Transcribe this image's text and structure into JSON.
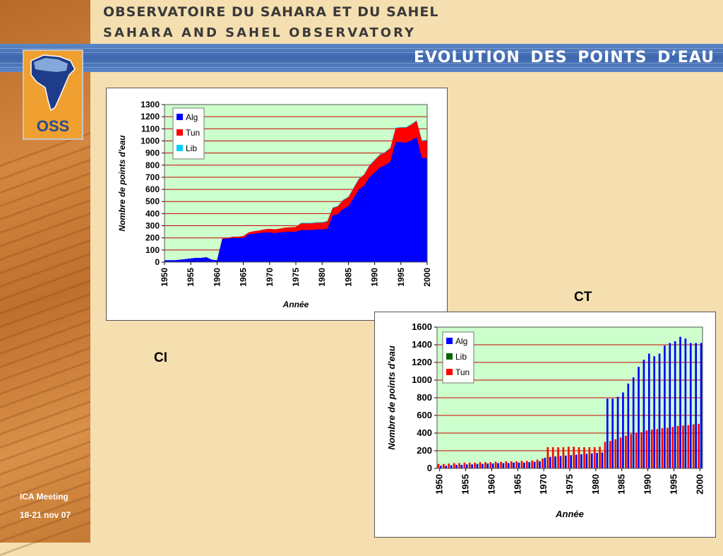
{
  "header": {
    "org_fr": "OBSERVATOIRE DU SAHARA ET DU SAHEL",
    "org_en": "SAHARA AND SAHEL OBSERVATORY",
    "slide_title": "EVOLUTION  DES  POINTS  D’EAU",
    "logo_text": "OSS"
  },
  "labels": {
    "ct": "CT",
    "ci": "CI"
  },
  "footer": {
    "line1": "ICA Meeting",
    "line2": "18-21 nov 07"
  },
  "colors": {
    "plot_bg": "#ccffcc",
    "gridline": "#cc0000",
    "alg": "#0000ff",
    "tun": "#ff0000",
    "lib_ci": "#00ccff",
    "lib_ct": "#006600",
    "title_band": "#3d67ad"
  },
  "chart_data": [
    {
      "id": "ci",
      "type": "area",
      "stacked": true,
      "xlabel": "Année",
      "ylabel": "Nombre de points d'eau",
      "x": [
        1950,
        1951,
        1952,
        1953,
        1954,
        1955,
        1956,
        1957,
        1958,
        1959,
        1960,
        1961,
        1962,
        1963,
        1964,
        1965,
        1966,
        1967,
        1968,
        1969,
        1970,
        1971,
        1972,
        1973,
        1974,
        1975,
        1976,
        1977,
        1978,
        1979,
        1980,
        1981,
        1982,
        1983,
        1984,
        1985,
        1986,
        1987,
        1988,
        1989,
        1990,
        1991,
        1992,
        1993,
        1994,
        1995,
        1996,
        1997,
        1998,
        1999,
        2000
      ],
      "xticks": [
        "1950",
        "1955",
        "1960",
        "1965",
        "1970",
        "1975",
        "1980",
        "1985",
        "1990",
        "1995",
        "2000"
      ],
      "ylim": [
        0,
        1300
      ],
      "yticks": [
        "0",
        "100",
        "200",
        "300",
        "400",
        "500",
        "600",
        "700",
        "800",
        "900",
        "1000",
        "1100",
        "1200",
        "1300"
      ],
      "legend": {
        "position": "top-left"
      },
      "series": [
        {
          "name": "Alg",
          "color": "#0000ff",
          "values": [
            15,
            15,
            15,
            20,
            25,
            30,
            35,
            35,
            40,
            20,
            15,
            190,
            195,
            200,
            200,
            200,
            230,
            235,
            240,
            245,
            245,
            240,
            245,
            250,
            250,
            250,
            265,
            265,
            265,
            270,
            270,
            275,
            385,
            395,
            440,
            460,
            530,
            600,
            630,
            700,
            740,
            780,
            800,
            830,
            990,
            990,
            985,
            1005,
            1030,
            860,
            860
          ]
        },
        {
          "name": "Tun",
          "color": "#ff0000",
          "values": [
            0,
            0,
            0,
            0,
            0,
            0,
            0,
            0,
            0,
            0,
            0,
            5,
            5,
            10,
            10,
            15,
            15,
            20,
            20,
            25,
            30,
            30,
            32,
            35,
            38,
            40,
            55,
            55,
            55,
            55,
            55,
            60,
            60,
            65,
            70,
            75,
            80,
            85,
            90,
            95,
            100,
            105,
            105,
            110,
            115,
            120,
            125,
            130,
            135,
            140,
            145
          ]
        },
        {
          "name": "Lib",
          "color": "#00ccff",
          "values": [
            0,
            0,
            0,
            0,
            0,
            0,
            0,
            0,
            0,
            0,
            0,
            0,
            0,
            0,
            0,
            0,
            0,
            0,
            0,
            0,
            0,
            0,
            0,
            0,
            0,
            0,
            5,
            5,
            5,
            5,
            5,
            5,
            5,
            5,
            5,
            5,
            5,
            5,
            5,
            5,
            5,
            5,
            5,
            5,
            5,
            5,
            5,
            5,
            5,
            5,
            5
          ]
        }
      ]
    },
    {
      "id": "ct",
      "type": "bar",
      "xlabel": "Année",
      "ylabel": "Nombre de points d'eau",
      "x": [
        1950,
        1951,
        1952,
        1953,
        1954,
        1955,
        1956,
        1957,
        1958,
        1959,
        1960,
        1961,
        1962,
        1963,
        1964,
        1965,
        1966,
        1967,
        1968,
        1969,
        1970,
        1971,
        1972,
        1973,
        1974,
        1975,
        1976,
        1977,
        1978,
        1979,
        1980,
        1981,
        1982,
        1983,
        1984,
        1985,
        1986,
        1987,
        1988,
        1989,
        1990,
        1991,
        1992,
        1993,
        1994,
        1995,
        1996,
        1997,
        1998,
        1999,
        2000
      ],
      "xticks": [
        "1950",
        "1955",
        "1960",
        "1965",
        "1970",
        "1975",
        "1980",
        "1985",
        "1990",
        "1995",
        "2000"
      ],
      "ylim": [
        0,
        1600
      ],
      "yticks": [
        "0",
        "200",
        "400",
        "600",
        "800",
        "1000",
        "1200",
        "1400",
        "1600"
      ],
      "legend": {
        "position": "top-left"
      },
      "series": [
        {
          "name": "Alg",
          "color": "#0000ff",
          "values": [
            30,
            30,
            35,
            40,
            40,
            45,
            45,
            50,
            50,
            55,
            55,
            60,
            60,
            60,
            65,
            65,
            65,
            70,
            75,
            80,
            120,
            130,
            135,
            140,
            145,
            150,
            155,
            160,
            165,
            170,
            175,
            180,
            790,
            790,
            810,
            860,
            960,
            1030,
            1150,
            1230,
            1300,
            1270,
            1300,
            1390,
            1420,
            1440,
            1490,
            1470,
            1420,
            1420,
            1420
          ]
        },
        {
          "name": "Lib",
          "color": "#006600",
          "values": [
            0,
            0,
            0,
            0,
            0,
            0,
            0,
            0,
            0,
            0,
            0,
            0,
            0,
            0,
            0,
            0,
            0,
            0,
            0,
            0,
            0,
            0,
            0,
            0,
            0,
            0,
            0,
            0,
            0,
            0,
            0,
            0,
            0,
            0,
            0,
            0,
            0,
            0,
            0,
            0,
            0,
            0,
            0,
            0,
            0,
            0,
            0,
            0,
            0,
            0,
            0
          ]
        },
        {
          "name": "Tun",
          "color": "#ff0000",
          "values": [
            50,
            50,
            55,
            60,
            60,
            65,
            65,
            65,
            70,
            70,
            70,
            75,
            75,
            80,
            80,
            80,
            85,
            85,
            90,
            100,
            110,
            240,
            240,
            240,
            240,
            245,
            245,
            240,
            240,
            240,
            240,
            245,
            300,
            310,
            330,
            350,
            370,
            390,
            405,
            410,
            430,
            440,
            445,
            455,
            460,
            470,
            480,
            485,
            490,
            500,
            505
          ]
        }
      ]
    }
  ]
}
